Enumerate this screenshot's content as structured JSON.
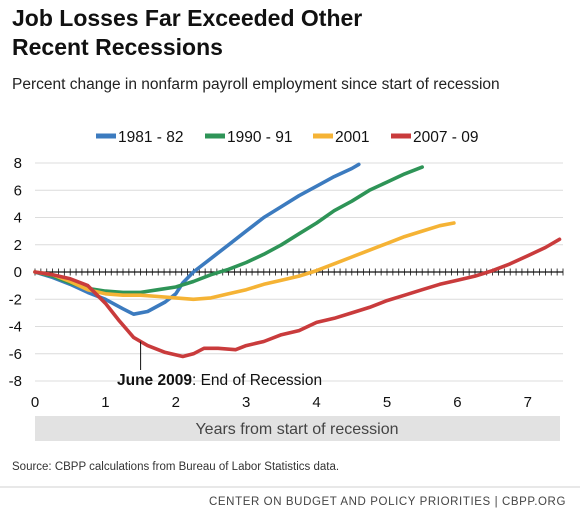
{
  "title_line1": "Job Losses Far Exceeded Other",
  "title_line2": "Recent Recessions",
  "subtitle": "Percent change in nonfarm payroll employment since start of recession",
  "source": "Source: CBPP calculations from Bureau of Labor Statistics data.",
  "footer": "CENTER ON BUDGET AND POLICY PRIORITIES | CBPP.ORG",
  "annotation": {
    "bold": "June 2009",
    "rest": ": End of Recession",
    "x": 1.5,
    "y": -5.1
  },
  "colors": {
    "grid": "#dcdcdc",
    "axis": "#111111",
    "xlabel_band": "#e2e2e2",
    "border": "#d0d0d0"
  },
  "chart_data": {
    "type": "line",
    "title": "Job Losses Far Exceeded Other Recent Recessions",
    "subtitle": "Percent change in nonfarm payroll employment since start of recession",
    "xlabel": "Years from start of recession",
    "ylabel": "",
    "xlim": [
      0,
      7.5
    ],
    "ylim": [
      -8,
      8
    ],
    "xticks": [
      0,
      1,
      2,
      3,
      4,
      5,
      6,
      7
    ],
    "yticks": [
      -8,
      -6,
      -4,
      -2,
      0,
      2,
      4,
      6,
      8
    ],
    "grid": true,
    "legend": "top",
    "series": [
      {
        "name": "1981 - 82",
        "color": "#3c7bbf",
        "x": [
          0,
          0.25,
          0.5,
          0.75,
          1.0,
          1.25,
          1.4,
          1.6,
          1.85,
          2.0,
          2.1,
          2.25,
          2.5,
          2.75,
          3.0,
          3.25,
          3.5,
          3.75,
          4.0,
          4.25,
          4.5,
          4.6
        ],
        "y": [
          0,
          -0.4,
          -0.9,
          -1.5,
          -2.0,
          -2.7,
          -3.1,
          -2.9,
          -2.2,
          -1.6,
          -0.8,
          0.0,
          1.0,
          2.0,
          3.0,
          4.0,
          4.8,
          5.6,
          6.3,
          7.0,
          7.6,
          7.9
        ]
      },
      {
        "name": "1990 - 91",
        "color": "#2e9457",
        "x": [
          0,
          0.25,
          0.5,
          0.75,
          1.0,
          1.25,
          1.5,
          1.75,
          2.0,
          2.25,
          2.5,
          2.75,
          3.0,
          3.25,
          3.5,
          3.75,
          4.0,
          4.25,
          4.5,
          4.75,
          5.0,
          5.25,
          5.5
        ],
        "y": [
          0,
          -0.3,
          -0.8,
          -1.2,
          -1.4,
          -1.5,
          -1.5,
          -1.3,
          -1.1,
          -0.7,
          -0.2,
          0.2,
          0.7,
          1.3,
          2.0,
          2.8,
          3.6,
          4.5,
          5.2,
          6.0,
          6.6,
          7.2,
          7.7
        ]
      },
      {
        "name": "2001",
        "color": "#f5b335",
        "x": [
          0,
          0.25,
          0.5,
          0.75,
          1.0,
          1.25,
          1.5,
          1.75,
          2.0,
          2.25,
          2.5,
          2.75,
          3.0,
          3.25,
          3.5,
          3.75,
          4.0,
          4.25,
          4.5,
          4.75,
          5.0,
          5.25,
          5.5,
          5.75,
          5.95
        ],
        "y": [
          0,
          -0.2,
          -0.7,
          -1.3,
          -1.6,
          -1.7,
          -1.7,
          -1.8,
          -1.9,
          -2.0,
          -1.9,
          -1.6,
          -1.3,
          -0.9,
          -0.6,
          -0.3,
          0.1,
          0.6,
          1.1,
          1.6,
          2.1,
          2.6,
          3.0,
          3.4,
          3.6
        ]
      },
      {
        "name": "2007 - 09",
        "color": "#c93b3c",
        "x": [
          0,
          0.25,
          0.5,
          0.75,
          1.0,
          1.2,
          1.4,
          1.6,
          1.85,
          2.1,
          2.25,
          2.4,
          2.6,
          2.85,
          3.0,
          3.25,
          3.5,
          3.75,
          4.0,
          4.25,
          4.5,
          4.75,
          5.0,
          5.25,
          5.5,
          5.75,
          6.0,
          6.25,
          6.5,
          6.75,
          7.0,
          7.25,
          7.45
        ],
        "y": [
          0,
          -0.2,
          -0.5,
          -1.0,
          -2.3,
          -3.6,
          -4.8,
          -5.4,
          -5.9,
          -6.2,
          -6.0,
          -5.6,
          -5.6,
          -5.7,
          -5.4,
          -5.1,
          -4.6,
          -4.3,
          -3.7,
          -3.4,
          -3.0,
          -2.6,
          -2.1,
          -1.7,
          -1.3,
          -0.9,
          -0.6,
          -0.3,
          0.1,
          0.6,
          1.2,
          1.8,
          2.4
        ]
      }
    ]
  }
}
